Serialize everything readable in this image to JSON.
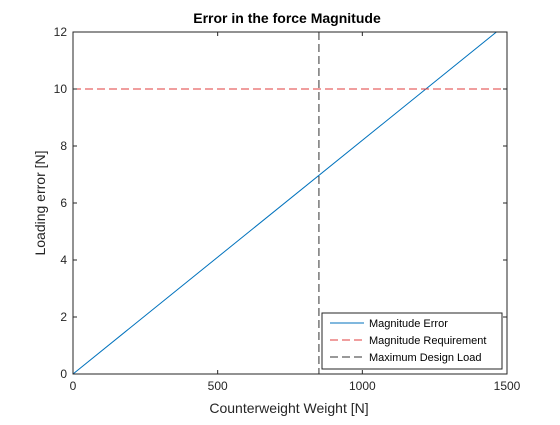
{
  "chart_data": {
    "type": "line",
    "title": "Error in the force Magnitude",
    "xlabel": "Counterweight Weight [N]",
    "ylabel": "Loading error [N]",
    "xlim": [
      0,
      1500
    ],
    "ylim": [
      0,
      12
    ],
    "xticks": [
      0,
      500,
      1000,
      1500
    ],
    "yticks": [
      0,
      2,
      4,
      6,
      8,
      10,
      12
    ],
    "grid": false,
    "legend_position": "bottom-right",
    "series": [
      {
        "name": "Magnitude Error",
        "kind": "line",
        "style": "solid",
        "color": "#0072bd",
        "x": [
          0,
          1500
        ],
        "y": [
          0,
          12.3
        ]
      },
      {
        "name": "Magnitude Requirement",
        "kind": "hline",
        "style": "dashed",
        "color": "#e03c3c",
        "y": 10
      },
      {
        "name": "Maximum Design Load",
        "kind": "vline",
        "style": "dashed",
        "color": "#333333",
        "x": 850
      }
    ]
  }
}
